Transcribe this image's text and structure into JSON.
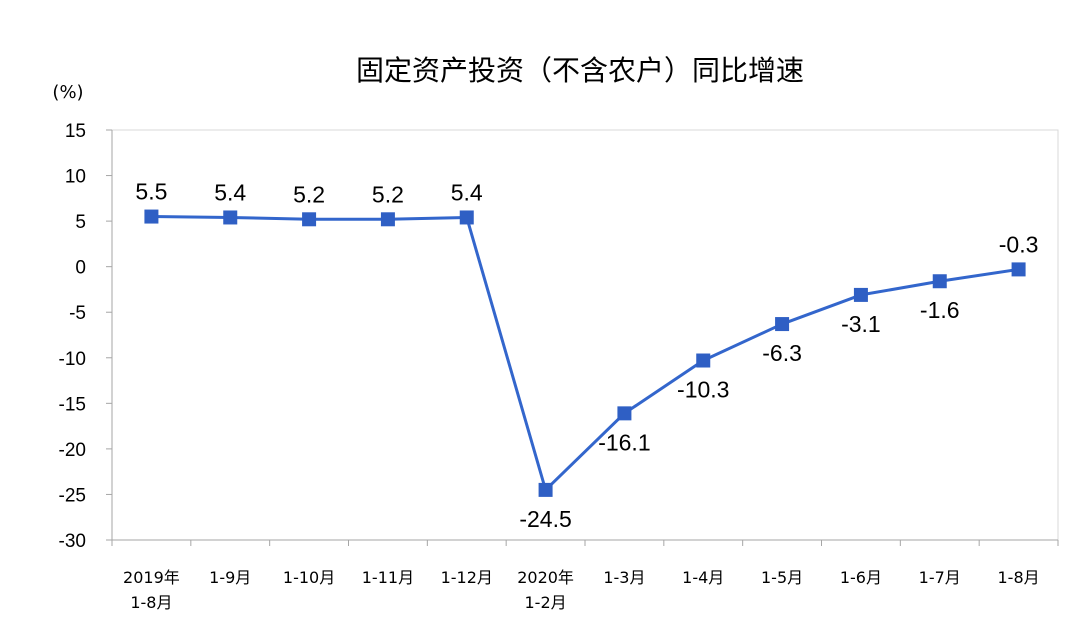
{
  "chart_data": {
    "type": "line",
    "title": "固定资产投资（不含农户）同比增速",
    "ylabel": "(%)",
    "ylim": [
      -30,
      15
    ],
    "yticks": [
      15,
      10,
      5,
      0,
      -5,
      -10,
      -15,
      -20,
      -25,
      -30
    ],
    "categories": [
      [
        "2019年",
        "1-8月"
      ],
      [
        "1-9月"
      ],
      [
        "1-10月"
      ],
      [
        "1-11月"
      ],
      [
        "1-12月"
      ],
      [
        "2020年",
        "1-2月"
      ],
      [
        "1-3月"
      ],
      [
        "1-4月"
      ],
      [
        "1-5月"
      ],
      [
        "1-6月"
      ],
      [
        "1-7月"
      ],
      [
        "1-8月"
      ]
    ],
    "values": [
      5.5,
      5.4,
      5.2,
      5.2,
      5.4,
      -24.5,
      -16.1,
      -10.3,
      -6.3,
      -3.1,
      -1.6,
      -0.3
    ],
    "label_position": [
      "above",
      "above",
      "above",
      "above",
      "above",
      "below",
      "below",
      "below",
      "below",
      "below",
      "below",
      "above"
    ],
    "grid": false,
    "line_color": "#3366CC",
    "marker_color": "#2F5FC4",
    "marker": "square"
  }
}
